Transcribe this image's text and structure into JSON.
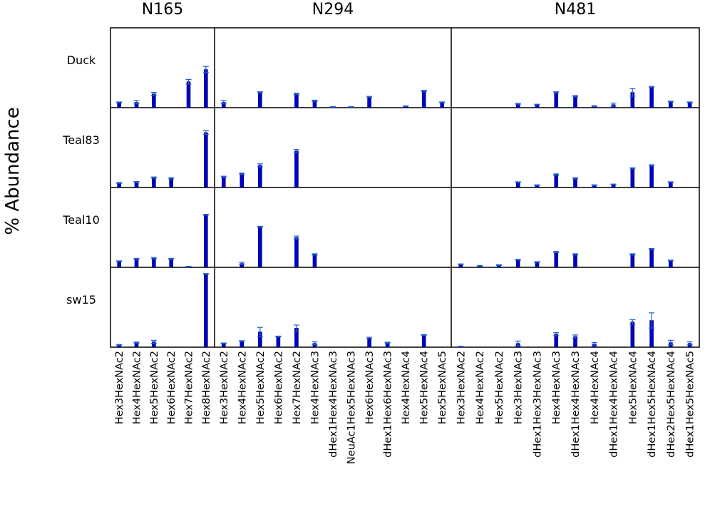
{
  "chart_data": {
    "type": "bar",
    "ylabel": "% Abundance",
    "ylim": [
      0,
      100
    ],
    "bar_color": "#0000cc",
    "error_color": "#1f5fd0",
    "rows": [
      "Duck",
      "Teal83",
      "Teal10",
      "sw15"
    ],
    "panels": [
      {
        "title": "N165",
        "categories": [
          "Hex3HexNAc2",
          "Hex4HexNAc2",
          "Hex5HexNAc2",
          "Hex6HexNAc2",
          "Hex7HexNAc2",
          "Hex8HexNAc2"
        ],
        "series": [
          {
            "values": [
              7,
              7,
              18,
              0,
              34,
              50
            ],
            "errors": [
              0.5,
              2,
              2,
              0,
              3,
              4
            ]
          },
          {
            "values": [
              6,
              7,
              13,
              12,
              0,
              72
            ],
            "errors": [
              0.5,
              0.8,
              0.8,
              0.8,
              0,
              2.5
            ]
          },
          {
            "values": [
              8,
              11,
              12,
              11,
              1,
              69
            ],
            "errors": [
              0.5,
              0.8,
              0.8,
              0.8,
              0.3,
              0.5
            ]
          },
          {
            "values": [
              3,
              6,
              7,
              0,
              0,
              96
            ],
            "errors": [
              0.5,
              0.8,
              2,
              0,
              0,
              0.5
            ]
          }
        ]
      },
      {
        "title": "N294",
        "categories": [
          "Hex3HexNAc2",
          "Hex4HexNAc2",
          "Hex5HexNAc2",
          "Hex6HexNAc2",
          "Hex7HexNAc2",
          "Hex4HexNAc3",
          "dHex1Hex4HexNAc3",
          "NeuAc1Hex5HexNAc3",
          "Hex6HexNAc3",
          "dHex1Hex6HexNAc3",
          "Hex4HexNAc4",
          "Hex5HexNAc4",
          "Hex5HexNAc5"
        ],
        "series": [
          {
            "values": [
              7,
              0,
              20,
              0,
              18,
              9,
              1,
              1,
              14,
              0,
              2,
              22,
              7
            ],
            "errors": [
              2,
              0,
              0.8,
              0,
              0.8,
              0.8,
              0.3,
              0.3,
              0.8,
              0,
              0.3,
              0.8,
              0.5
            ]
          },
          {
            "values": [
              14,
              18,
              29,
              0,
              48,
              0,
              0,
              0,
              0,
              0,
              0,
              0,
              0
            ],
            "errors": [
              0.8,
              0.8,
              2,
              0,
              2,
              0,
              0,
              0,
              0,
              0,
              0,
              0,
              0
            ]
          },
          {
            "values": [
              0,
              5,
              53,
              0,
              39,
              17,
              0,
              0,
              0,
              0,
              0,
              0,
              0
            ],
            "errors": [
              0,
              1.5,
              0.8,
              0,
              2,
              0.8,
              0,
              0,
              0,
              0,
              0,
              0,
              0
            ]
          },
          {
            "values": [
              5,
              8,
              20,
              14,
              25,
              5,
              0,
              0,
              12,
              6,
              0,
              16,
              0
            ],
            "errors": [
              0.5,
              0.5,
              6,
              0.5,
              4,
              2,
              0,
              0,
              1,
              0.5,
              0,
              0.5,
              0
            ]
          }
        ]
      },
      {
        "title": "N481",
        "categories": [
          "Hex3HexNAc2",
          "Hex4HexNAc2",
          "Hex5HexNAc2",
          "Hex3HexNAc3",
          "dHex1Hex3HexNAc3",
          "Hex4HexNAc3",
          "dHex1Hex4HexNAc3",
          "Hex4HexNAc4",
          "dHex1Hex4HexNAc4",
          "Hex5HexNAc4",
          "dHex1Hex5HexNAc4",
          "dHex2Hex5HexNAc4",
          "dHex1Hex5HexNAc5"
        ],
        "series": [
          {
            "values": [
              0,
              0,
              0,
              5,
              4,
              20,
              15,
              2,
              4,
              20,
              27,
              8,
              7
            ],
            "errors": [
              0,
              0,
              0,
              0.5,
              0.5,
              0.8,
              0.8,
              0.5,
              2,
              5,
              0.8,
              0.5,
              0.5
            ]
          },
          {
            "values": [
              0,
              0,
              0,
              7,
              3,
              17,
              12,
              3,
              4,
              25,
              29,
              7,
              0
            ],
            "errors": [
              0,
              0,
              0,
              0.5,
              0.5,
              0.8,
              0.8,
              0.5,
              0.5,
              0.8,
              0.8,
              0.5,
              0
            ]
          },
          {
            "values": [
              4,
              2,
              3,
              10,
              7,
              20,
              17,
              0,
              0,
              17,
              24,
              9,
              0
            ],
            "errors": [
              0.5,
              0.3,
              0.5,
              0.5,
              0.5,
              0.8,
              0.8,
              0,
              0,
              0.8,
              0.8,
              0.5,
              0
            ]
          },
          {
            "values": [
              1,
              0,
              0,
              5,
              0,
              17,
              14,
              4,
              0,
              33,
              35,
              6,
              5
            ],
            "errors": [
              0.3,
              0,
              0,
              3,
              0,
              2,
              2,
              2,
              0,
              3,
              10,
              3,
              2
            ]
          }
        ]
      }
    ]
  }
}
